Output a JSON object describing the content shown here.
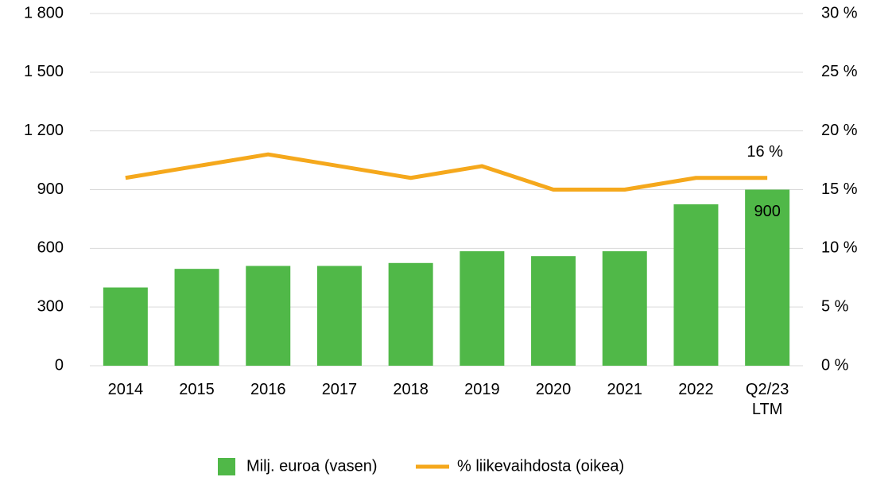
{
  "chart_data": {
    "type": "bar_line",
    "categories": [
      "2014",
      "2015",
      "2016",
      "2017",
      "2018",
      "2019",
      "2020",
      "2021",
      "2022",
      "Q2/23\nLTM"
    ],
    "series": [
      {
        "name": "Milj. euroa (vasen)",
        "type": "bar",
        "color": "#50b848",
        "axis": "y",
        "values": [
          400,
          495,
          510,
          510,
          525,
          585,
          560,
          585,
          825,
          900
        ],
        "value_labels": [
          null,
          null,
          null,
          null,
          null,
          null,
          null,
          null,
          null,
          "900"
        ]
      },
      {
        "name": "% liikevaihdosta (oikea)",
        "type": "line",
        "color": "#f5a81c",
        "axis": "y2",
        "values": [
          16,
          17,
          18,
          17,
          16,
          17,
          15,
          15,
          16,
          16
        ],
        "value_labels": [
          null,
          null,
          null,
          null,
          null,
          null,
          null,
          null,
          null,
          "16 %"
        ]
      }
    ],
    "ylim": [
      0,
      1800
    ],
    "yticks": [
      0,
      300,
      600,
      900,
      {
        "value": 1200,
        "label": "1 200"
      },
      {
        "value": 1500,
        "label": "1 500"
      },
      {
        "value": 1800,
        "label": "1 800"
      }
    ],
    "y2lim": [
      0,
      30
    ],
    "y2ticks": [
      {
        "value": 0,
        "label": "0 %"
      },
      {
        "value": 5,
        "label": "5 %"
      },
      {
        "value": 10,
        "label": "10 %"
      },
      {
        "value": 15,
        "label": "15 %"
      },
      {
        "value": 20,
        "label": "20 %"
      },
      {
        "value": 25,
        "label": "25 %"
      },
      {
        "value": 30,
        "label": "30 %"
      }
    ],
    "grid": true,
    "legend": "bottom"
  }
}
